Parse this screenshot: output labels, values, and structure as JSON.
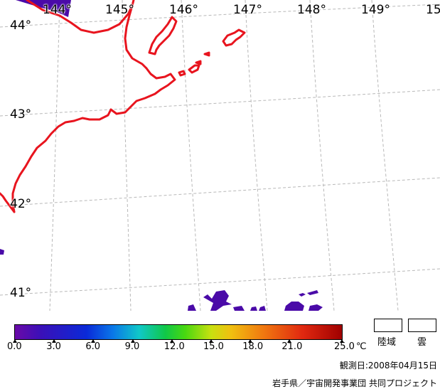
{
  "map": {
    "lon_labels": [
      "144°",
      "145°",
      "146°",
      "147°",
      "148°",
      "149°",
      "15"
    ],
    "lat_labels": [
      "44°",
      "43°",
      "42°",
      "41°"
    ],
    "colors": {
      "coast": "#e8141e",
      "grid": "#b8b8b8",
      "cold_sst": "#4a0aa8"
    }
  },
  "colorbar": {
    "ticks": [
      "0.0",
      "3.0",
      "6.0",
      "9.0",
      "12.0",
      "15.0",
      "18.0",
      "21.0",
      "25.0"
    ],
    "unit": "℃",
    "min": 0,
    "max": 25
  },
  "legend": {
    "land_label": "陸域",
    "cloud_label": "雲"
  },
  "observation_date": "観測日:2008年04月15日",
  "credit": "岩手県／宇宙開発事業団 共同プロジェクト"
}
